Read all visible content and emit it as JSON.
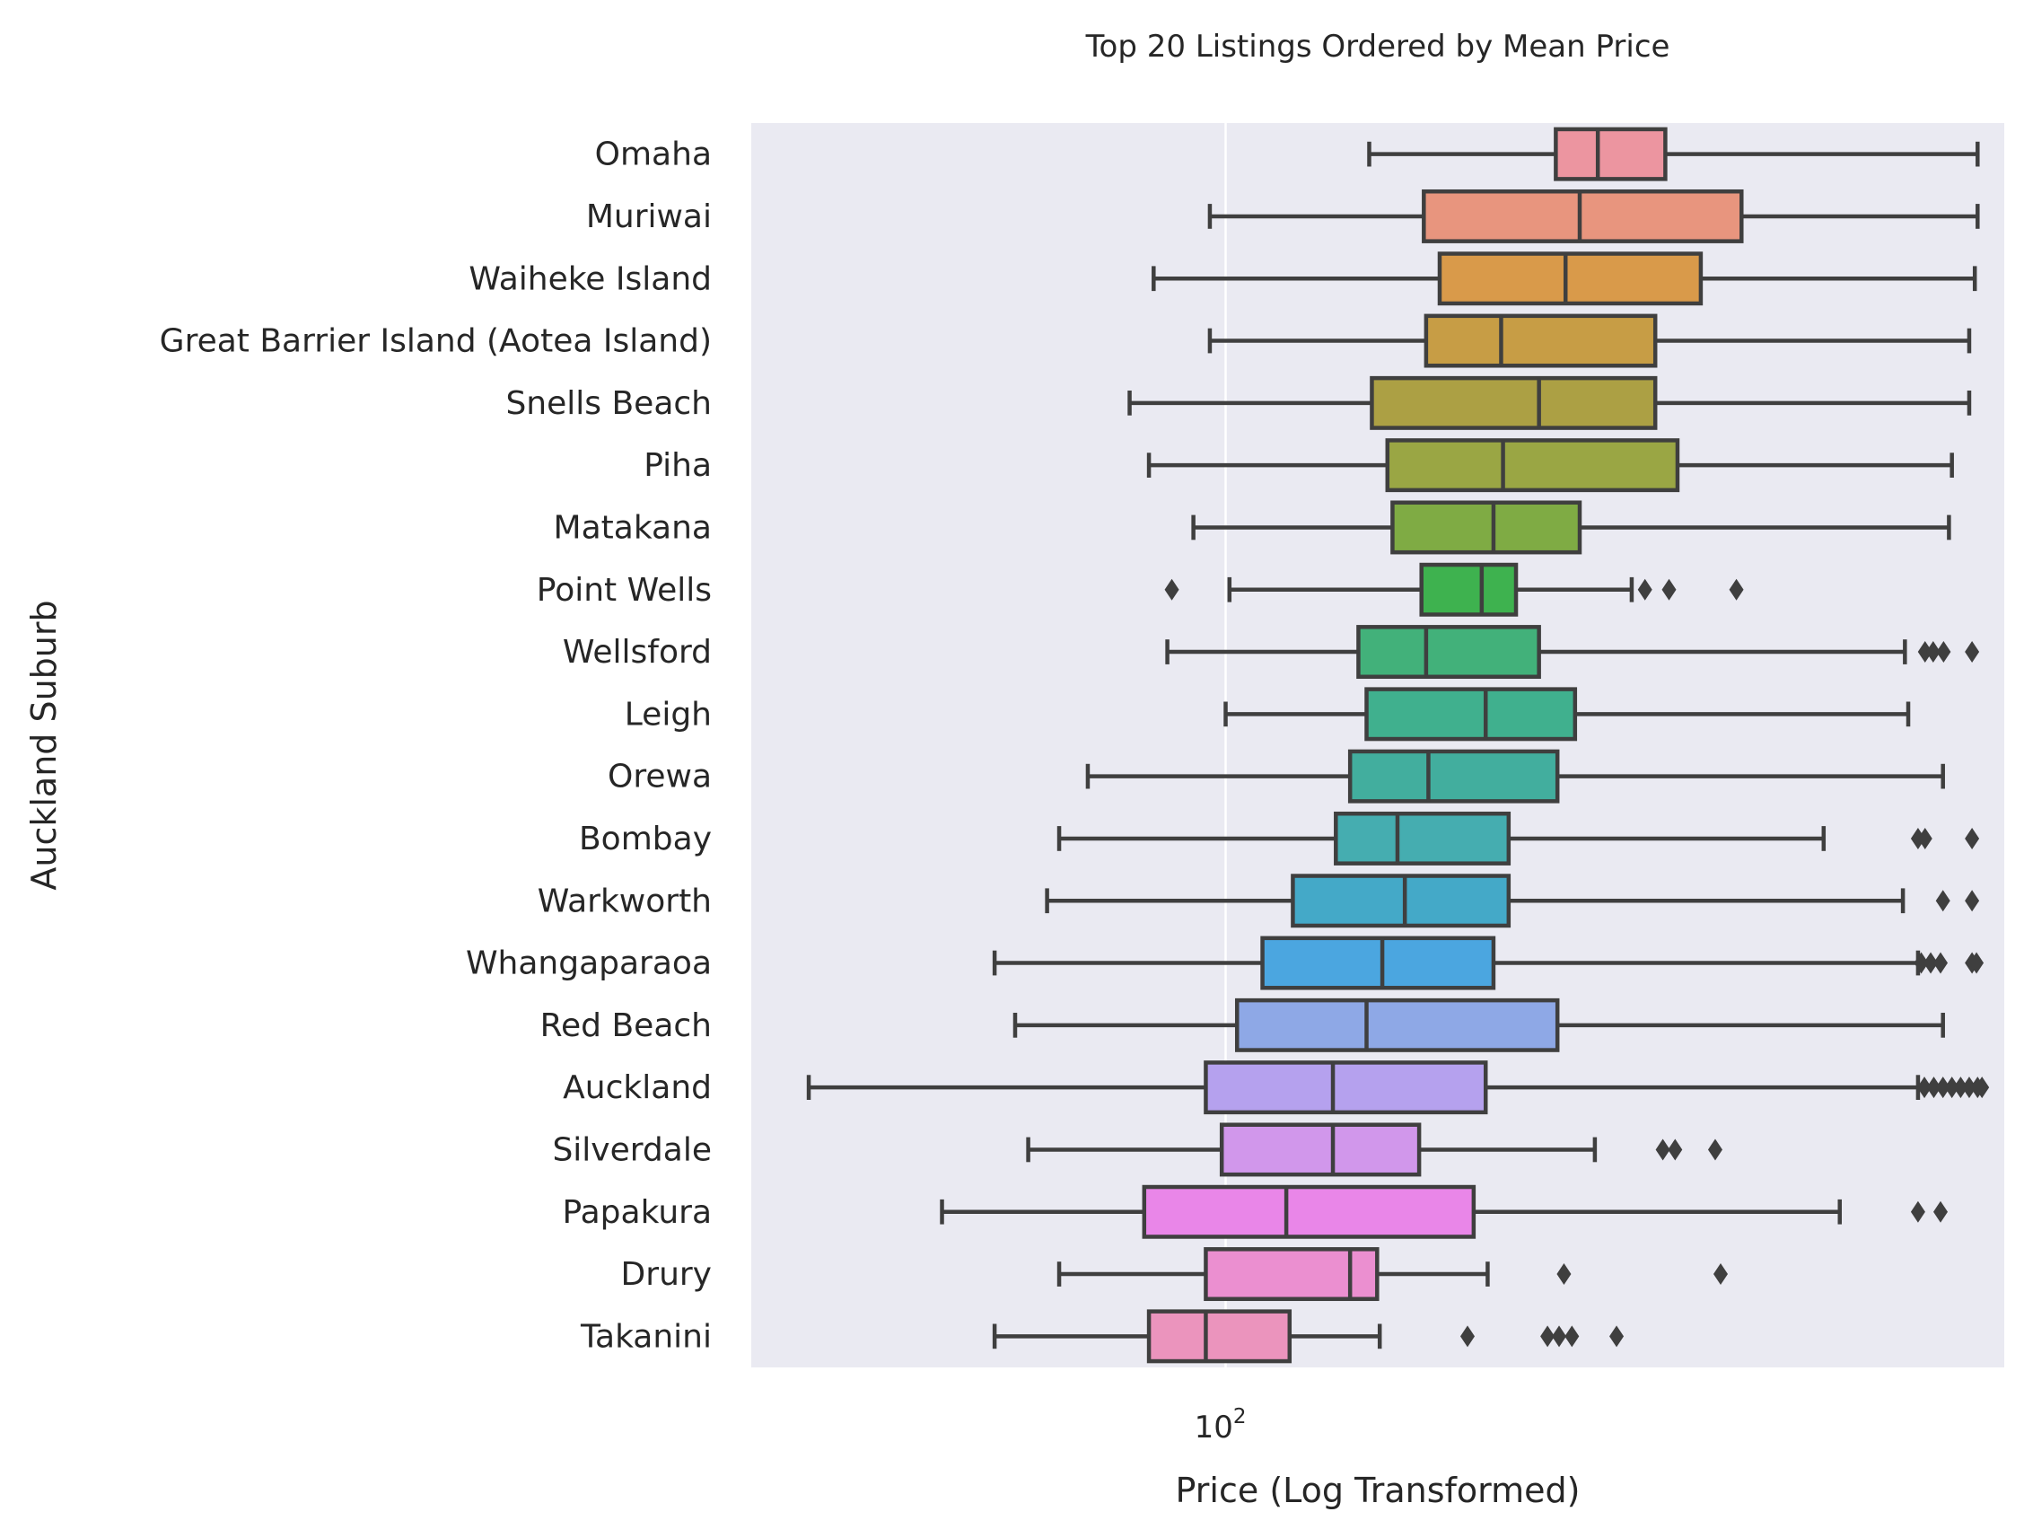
{
  "chart_data": {
    "type": "boxplot",
    "title": "Top 20 Listings Ordered by Mean Price",
    "xlabel": "Price (Log Transformed)",
    "ylabel": "Auckland Suburb",
    "x_scale": "log",
    "xlim": [
      29.3,
      750
    ],
    "x_ticks": [
      {
        "value": 100,
        "base": "10",
        "exp": "2"
      }
    ],
    "grid": "vertical",
    "series": [
      {
        "name": "Omaha",
        "color": "#ec95a0",
        "whisker_low": 145,
        "q1": 235,
        "median": 262,
        "q3": 312,
        "whisker_high": 700,
        "outliers": []
      },
      {
        "name": "Muriwai",
        "color": "#e8957e",
        "whisker_low": 96,
        "q1": 167,
        "median": 250,
        "q3": 380,
        "whisker_high": 700,
        "outliers": []
      },
      {
        "name": "Waiheke Island",
        "color": "#d99a4a",
        "whisker_low": 83,
        "q1": 174,
        "median": 241,
        "q3": 342,
        "whisker_high": 695,
        "outliers": []
      },
      {
        "name": "Great Barrier Island (Aotea Island)",
        "color": "#c79d45",
        "whisker_low": 96,
        "q1": 168,
        "median": 204,
        "q3": 304,
        "whisker_high": 685,
        "outliers": []
      },
      {
        "name": "Snells Beach",
        "color": "#aca044",
        "whisker_low": 78,
        "q1": 146,
        "median": 225,
        "q3": 304,
        "whisker_high": 685,
        "outliers": []
      },
      {
        "name": "Piha",
        "color": "#9aa644",
        "whisker_low": 82,
        "q1": 152,
        "median": 205,
        "q3": 322,
        "whisker_high": 655,
        "outliers": []
      },
      {
        "name": "Matakana",
        "color": "#7fab44",
        "whisker_low": 92,
        "q1": 154,
        "median": 200,
        "q3": 250,
        "whisker_high": 650,
        "outliers": []
      },
      {
        "name": "Point Wells",
        "color": "#3eb24f",
        "whisker_low": 101,
        "q1": 166,
        "median": 194,
        "q3": 212,
        "whisker_high": 286,
        "outliers": [
          87,
          296,
          315,
          375
        ]
      },
      {
        "name": "Wellsford",
        "color": "#42b17a",
        "whisker_low": 86,
        "q1": 141,
        "median": 168,
        "q3": 225,
        "whisker_high": 580,
        "outliers": [
          611,
          624,
          641,
          690
        ]
      },
      {
        "name": "Leigh",
        "color": "#40b08e",
        "whisker_low": 100,
        "q1": 144,
        "median": 196,
        "q3": 247,
        "whisker_high": 585,
        "outliers": []
      },
      {
        "name": "Orewa",
        "color": "#42ae9e",
        "whisker_low": 70,
        "q1": 138,
        "median": 169,
        "q3": 236,
        "whisker_high": 640,
        "outliers": []
      },
      {
        "name": "Bombay",
        "color": "#45adb0",
        "whisker_low": 65,
        "q1": 133,
        "median": 156,
        "q3": 208,
        "whisker_high": 470,
        "outliers": [
          600,
          611,
          690
        ]
      },
      {
        "name": "Warkworth",
        "color": "#44a9c8",
        "whisker_low": 63,
        "q1": 119,
        "median": 159,
        "q3": 208,
        "whisker_high": 577,
        "outliers": [
          640,
          690
        ]
      },
      {
        "name": "Whangaparaoa",
        "color": "#4ba6e0",
        "whisker_low": 55,
        "q1": 110,
        "median": 150,
        "q3": 200,
        "whisker_high": 600,
        "outliers": [
          605,
          620,
          636,
          690,
          698
        ]
      },
      {
        "name": "Red Beach",
        "color": "#8ea8e6",
        "whisker_low": 58,
        "q1": 103,
        "median": 144,
        "q3": 236,
        "whisker_high": 640,
        "outliers": []
      },
      {
        "name": "Auckland",
        "color": "#b5a1ee",
        "whisker_low": 34,
        "q1": 95,
        "median": 132,
        "q3": 196,
        "whisker_high": 600,
        "outliers": [
          610,
          625,
          640,
          655,
          670,
          685,
          700,
          708
        ]
      },
      {
        "name": "Silverdale",
        "color": "#d197eb",
        "whisker_low": 60,
        "q1": 99,
        "median": 132,
        "q3": 165,
        "whisker_high": 260,
        "outliers": [
          310,
          320,
          355
        ]
      },
      {
        "name": "Papakura",
        "color": "#e986e8",
        "whisker_low": 48,
        "q1": 81,
        "median": 117,
        "q3": 190,
        "whisker_high": 490,
        "outliers": [
          600,
          636
        ]
      },
      {
        "name": "Drury",
        "color": "#eb8fd0",
        "whisker_low": 65,
        "q1": 95,
        "median": 138,
        "q3": 148,
        "whisker_high": 197,
        "outliers": [
          240,
          360
        ]
      },
      {
        "name": "Takanini",
        "color": "#eb94bd",
        "whisker_low": 55,
        "q1": 82,
        "median": 95,
        "q3": 118,
        "whisker_high": 149,
        "outliers": [
          187,
          230,
          237,
          245,
          275
        ]
      }
    ]
  }
}
